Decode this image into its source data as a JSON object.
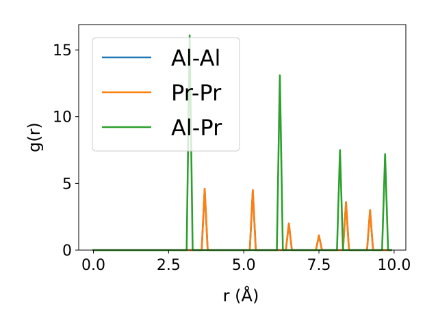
{
  "chart_data": {
    "type": "line",
    "xlabel": "r (Å)",
    "ylabel": "g(r)",
    "xlim": [
      -0.49,
      10.39
    ],
    "ylim": [
      0,
      16.9
    ],
    "grid": false,
    "legend_location": "upper left",
    "x_ticks": [
      0.0,
      2.5,
      5.0,
      7.5,
      10.0
    ],
    "x_tick_labels": [
      "0.0",
      "2.5",
      "5.0",
      "7.5",
      "10.0"
    ],
    "y_ticks": [
      0,
      5,
      10,
      15
    ],
    "y_tick_labels": [
      "0",
      "5",
      "10",
      "15"
    ],
    "series": [
      {
        "name": "Al-Al",
        "color": "#1f77b4",
        "x": [
          0.0,
          3.6,
          3.7,
          3.8,
          5.2,
          5.3,
          5.4,
          6.4,
          6.5,
          6.6,
          7.4,
          7.5,
          7.6,
          8.3,
          8.4,
          8.5,
          9.1,
          9.2,
          9.3,
          9.9
        ],
        "y": [
          0,
          0,
          4.6,
          0,
          0,
          4.5,
          0,
          0,
          2.0,
          0,
          0,
          1.1,
          0,
          0,
          3.6,
          0,
          0,
          3.0,
          0,
          0
        ]
      },
      {
        "name": "Pr-Pr",
        "color": "#ff7f0e",
        "x": [
          0.0,
          3.6,
          3.7,
          3.8,
          5.2,
          5.3,
          5.4,
          6.4,
          6.5,
          6.6,
          7.4,
          7.5,
          7.6,
          8.3,
          8.4,
          8.5,
          9.1,
          9.2,
          9.3,
          9.9
        ],
        "y": [
          0,
          0,
          4.6,
          0,
          0,
          4.5,
          0,
          0,
          2.0,
          0,
          0,
          1.1,
          0,
          0,
          3.6,
          0,
          0,
          3.0,
          0,
          0
        ]
      },
      {
        "name": "Al-Pr",
        "color": "#2ca02c",
        "x": [
          0.0,
          3.1,
          3.2,
          3.3,
          6.1,
          6.2,
          6.3,
          8.1,
          8.2,
          8.3,
          9.6,
          9.7,
          9.8,
          9.9
        ],
        "y": [
          0,
          0,
          16.1,
          0,
          0,
          13.1,
          0,
          0,
          7.5,
          0,
          0,
          7.2,
          0,
          0
        ]
      }
    ]
  }
}
